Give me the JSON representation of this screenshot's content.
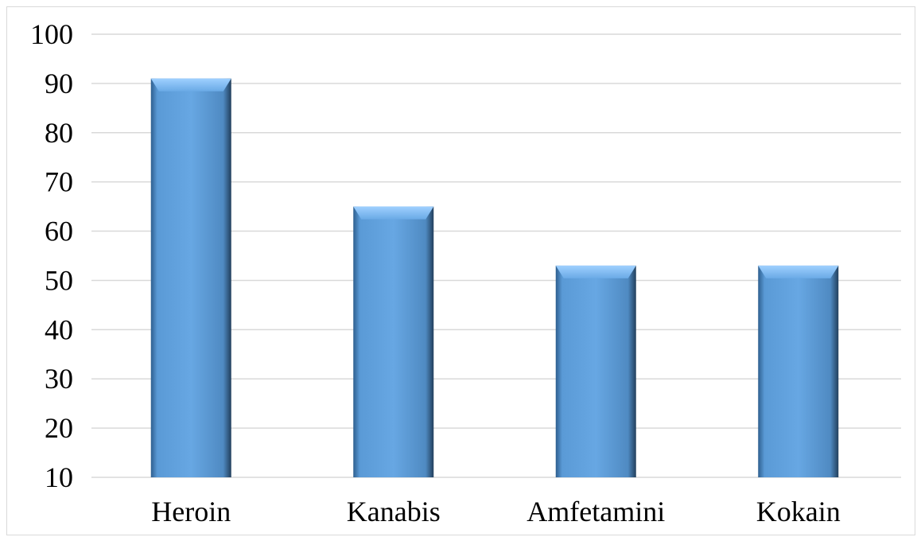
{
  "chart_data": {
    "type": "bar",
    "title": "",
    "xlabel": "",
    "ylabel": "",
    "categories": [
      "Heroin",
      "Kanabis",
      "Amfetamini",
      "Kokain"
    ],
    "values": [
      91,
      65,
      53,
      53
    ],
    "ylim": [
      10,
      100
    ],
    "yticks": [
      "10",
      "20",
      "30",
      "40",
      "50",
      "60",
      "70",
      "80",
      "90",
      "100"
    ],
    "grid": true,
    "legend": "none",
    "bar_color": "#5b9bd5"
  }
}
